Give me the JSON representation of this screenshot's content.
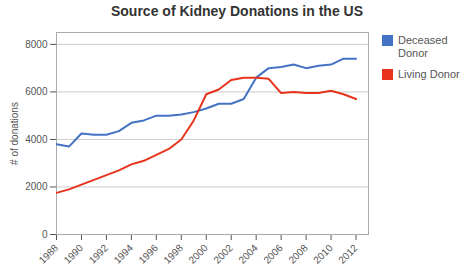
{
  "chart_data": {
    "type": "line",
    "title": "Source of Kidney Donations in the US",
    "ylabel": "# of donations",
    "x": [
      1988,
      1989,
      1990,
      1991,
      1992,
      1993,
      1994,
      1995,
      1996,
      1997,
      1998,
      1999,
      2000,
      2001,
      2002,
      2003,
      2004,
      2005,
      2006,
      2007,
      2008,
      2009,
      2010,
      2011,
      2012
    ],
    "series": [
      {
        "name": "Deceased\nDonor",
        "color": "#4472c4",
        "values": [
          3800,
          3700,
          4250,
          4200,
          4200,
          4350,
          4700,
          4800,
          5000,
          5000,
          5050,
          5150,
          5300,
          5500,
          5500,
          5700,
          6600,
          7000,
          7050,
          7150,
          7000,
          7100,
          7150,
          7400,
          7400
        ]
      },
      {
        "name": "Living Donor",
        "color": "#e8341c",
        "values": [
          1750,
          1900,
          2100,
          2300,
          2500,
          2700,
          2950,
          3100,
          3350,
          3600,
          4000,
          4800,
          5900,
          6100,
          6500,
          6600,
          6600,
          6550,
          5950,
          6000,
          5950,
          5950,
          6050,
          5900,
          5700
        ]
      }
    ],
    "xlim": [
      1988,
      2013
    ],
    "ylim": [
      0,
      8500
    ],
    "xticks": [
      1988,
      1990,
      1992,
      1994,
      1996,
      1998,
      2000,
      2002,
      2004,
      2006,
      2008,
      2010,
      2012
    ],
    "yticks": [
      0,
      2000,
      4000,
      6000,
      8000
    ],
    "grid": true,
    "legend": "right"
  }
}
